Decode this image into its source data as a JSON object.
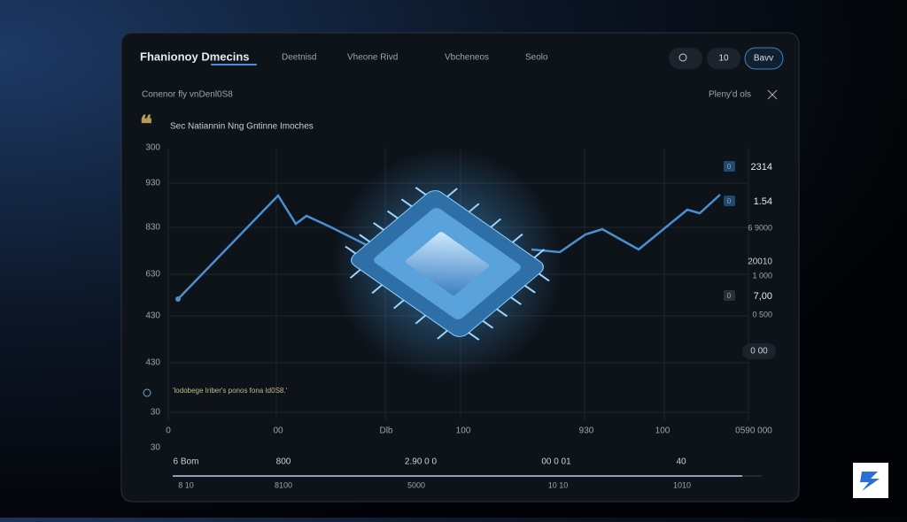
{
  "header": {
    "title": "Fhanionoy Dmecins",
    "nav": [
      "Deetnisd",
      "Vheone Rivd",
      "Vbcheneos",
      "Seolo"
    ],
    "buttons": [
      "10",
      "Bavv"
    ]
  },
  "toolbar": {
    "left": "Conenor fly vnDenl0S8",
    "right": "Pleny'd ols"
  },
  "panel": {
    "heading": "Sec Natiannin Nng Gntinne Imoches",
    "annotation": "'lodobege Iriber's ponos fona Id0S8.'",
    "y_labels": [
      "300",
      "930",
      "830",
      "630",
      "430",
      "430",
      "30",
      "30"
    ],
    "x_labels": [
      "0",
      "00",
      "Dlb",
      "100",
      "930",
      "100",
      "0590 000"
    ]
  },
  "side": {
    "badges": [
      "0",
      "0",
      "0"
    ],
    "items": [
      "2314",
      "1.54",
      "6 9000",
      "20010",
      "1 000",
      "7,00",
      "0 500"
    ],
    "pill": "0 00"
  },
  "footer": {
    "rows": [
      [
        "6 Bom",
        "800",
        "2.90 0 0",
        "00 0 01",
        "40"
      ],
      [
        "8 10",
        "8100",
        "5000",
        "10 10",
        "1010"
      ]
    ]
  }
}
